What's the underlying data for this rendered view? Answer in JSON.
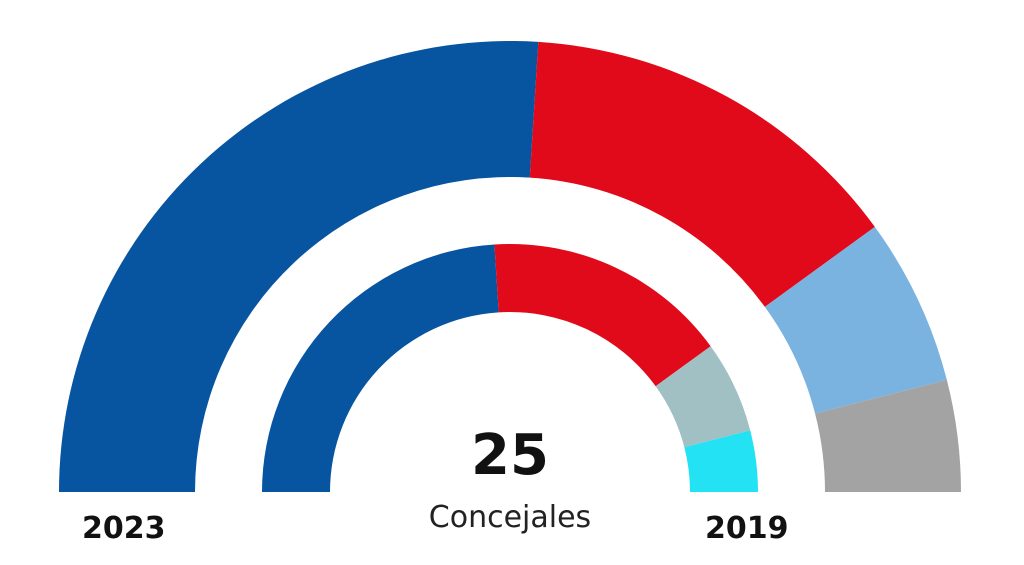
{
  "chart_data": {
    "type": "pie",
    "subtype": "parliament-semicircle",
    "total": "25",
    "total_label": "Concejales",
    "rings": [
      {
        "label": "2023",
        "position": "outer",
        "values": [
          13,
          7,
          3,
          2
        ],
        "colors": [
          "#0754A0",
          "#E00A1A",
          "#7AB2E0",
          "#A3A3A3"
        ]
      },
      {
        "label": "2019",
        "position": "inner",
        "values": [
          12,
          8,
          3,
          2
        ],
        "colors": [
          "#0754A0",
          "#E00A1A",
          "#A0C0C4",
          "#22E2F4"
        ]
      }
    ]
  }
}
